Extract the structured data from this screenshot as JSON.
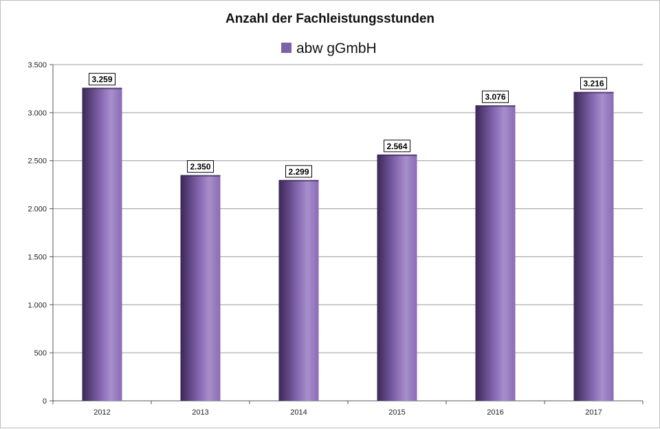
{
  "chart_data": {
    "type": "bar",
    "title": "Anzahl der Fachleistungsstunden",
    "categories": [
      "2012",
      "2013",
      "2014",
      "2015",
      "2016",
      "2017"
    ],
    "series": [
      {
        "name": "abw gGmbH",
        "values": [
          3259,
          2350,
          2299,
          2564,
          3076,
          3216
        ],
        "value_labels": [
          "3.259",
          "2.350",
          "2.299",
          "2.564",
          "3.076",
          "3.216"
        ]
      }
    ],
    "ylim": [
      0,
      3500
    ],
    "yticks": [
      0,
      500,
      1000,
      1500,
      2000,
      2500,
      3000,
      3500
    ],
    "ytick_labels": [
      "0",
      "500",
      "1.000",
      "1.500",
      "2.000",
      "2.500",
      "3.000",
      "3.500"
    ],
    "xlabel": "",
    "ylabel": "",
    "grid": true,
    "legend_position": "top-center",
    "colors": {
      "bar_edge_dark": "#3a2656",
      "bar_mid": "#8a6bb5",
      "bar_highlight": "#a78fcb",
      "legend_swatch": "#7e62a8",
      "grid": "#9a9a9a"
    }
  }
}
